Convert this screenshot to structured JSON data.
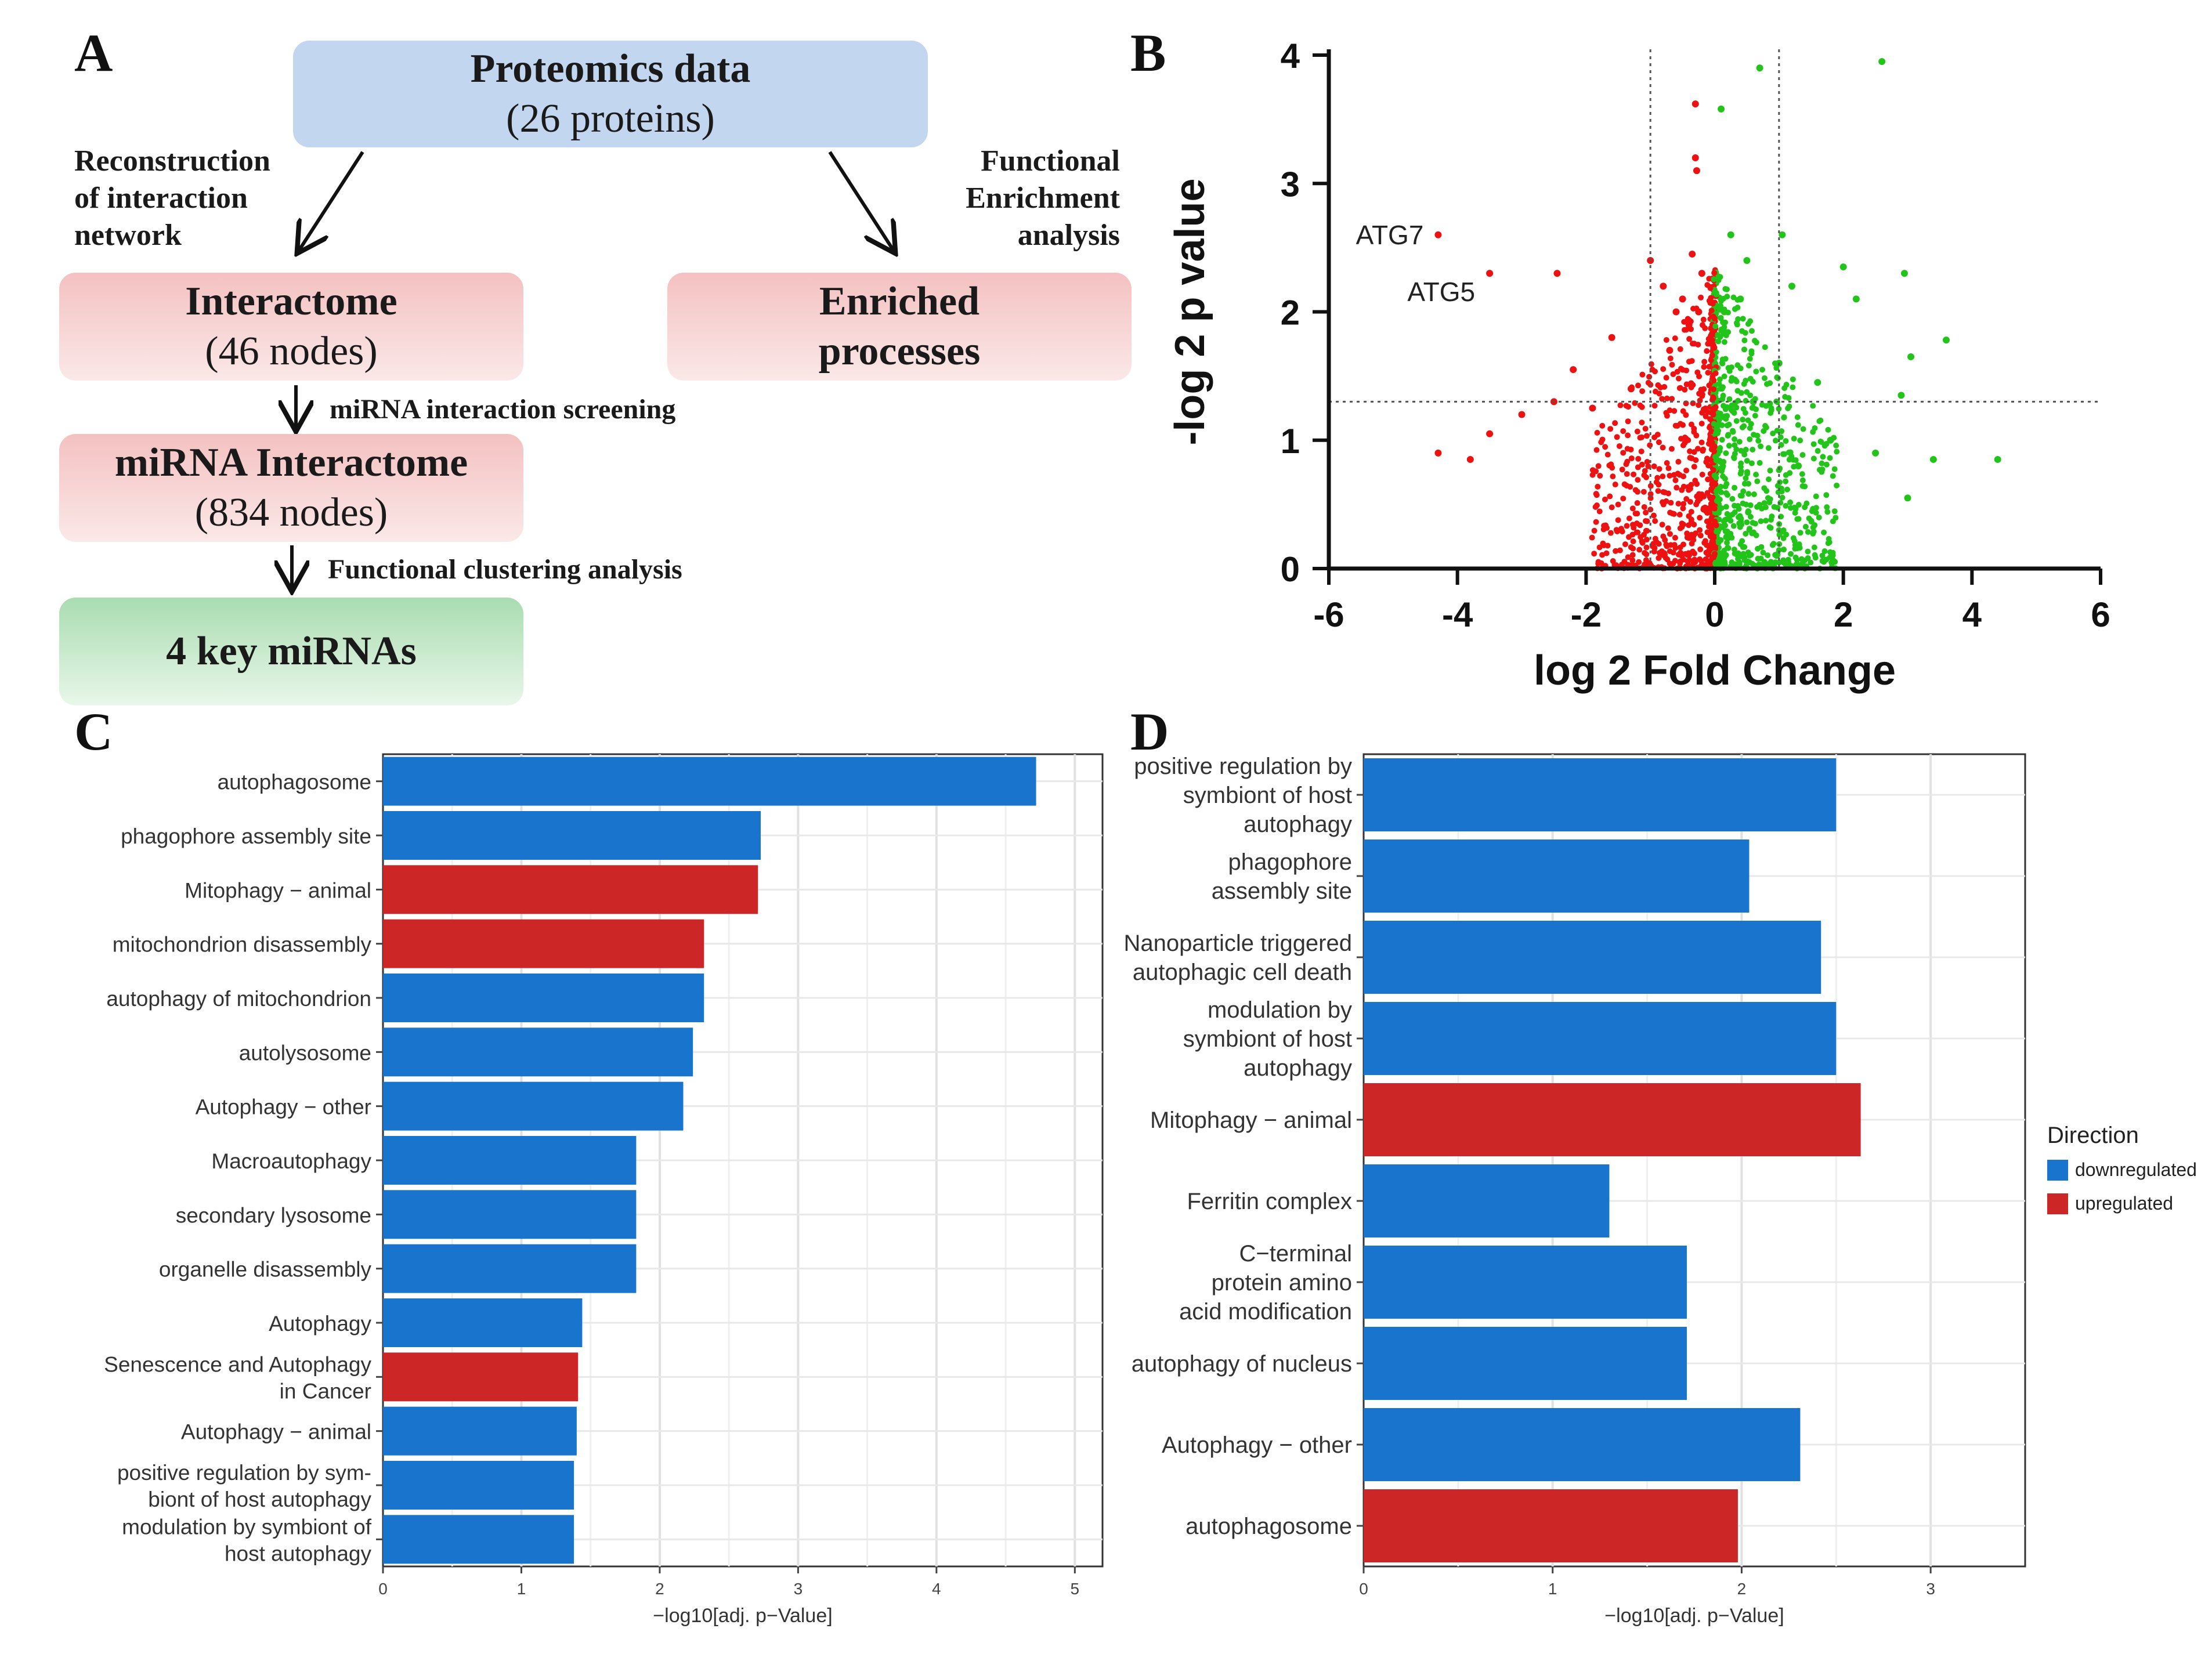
{
  "panels": {
    "a": "A",
    "b": "B",
    "c": "C",
    "d": "D"
  },
  "flow": {
    "proteomics": {
      "title": "Proteomics data",
      "subtitle": "(26 proteins)"
    },
    "left_arrow_label": "Reconstruction\nof interaction\nnetwork",
    "right_arrow_label": "Functional\nEnrichment\nanalysis",
    "interactome": {
      "title": "Interactome",
      "subtitle": "(46 nodes)"
    },
    "enriched": {
      "title": "Enriched",
      "subtitle": "processes"
    },
    "screening_label": "miRNA interaction screening",
    "mirna_interactome": {
      "title": "miRNA Interactome",
      "subtitle": "(834 nodes)"
    },
    "clustering_label": "Functional clustering analysis",
    "key_mirnas": {
      "title": "4 key miRNAs"
    }
  },
  "colors": {
    "down": "#1874cd",
    "up": "#cd2626",
    "green_point": "#22c41a",
    "red_point": "#ee1111"
  },
  "chart_data": [
    {
      "id": "volcano",
      "type": "scatter",
      "xlabel": "log 2 Fold Change",
      "ylabel": "-log 2 p value",
      "xlim": [
        -6,
        6
      ],
      "ylim": [
        0,
        4
      ],
      "xticks": [
        "-6",
        "-4",
        "-2",
        "0",
        "2",
        "4",
        "6"
      ],
      "yticks": [
        "0",
        "1",
        "2",
        "3",
        "4"
      ],
      "thresholds": {
        "x": [
          -1,
          1
        ],
        "y": 1.3
      },
      "annotations": [
        {
          "label": "ATG7",
          "x": -4.3,
          "y": 2.6
        },
        {
          "label": "ATG5",
          "x": -3.5,
          "y": 2.3
        }
      ],
      "series": [
        {
          "name": "negative fold change",
          "color": "red",
          "points": [
            [
              -4.3,
              2.6
            ],
            [
              -3.5,
              2.3
            ],
            [
              -2.45,
              2.3
            ],
            [
              -0.3,
              3.62
            ],
            [
              -0.3,
              3.2
            ],
            [
              -0.28,
              3.1
            ],
            [
              -0.25,
              2.0
            ],
            [
              -0.35,
              2.45
            ],
            [
              -1.0,
              2.4
            ],
            [
              -0.8,
              2.2
            ],
            [
              -0.5,
              2.1
            ],
            [
              -1.6,
              1.8
            ],
            [
              -2.2,
              1.55
            ],
            [
              -3.0,
              1.2
            ],
            [
              -3.5,
              1.05
            ],
            [
              -4.3,
              0.9
            ],
            [
              -3.8,
              0.85
            ],
            [
              -2.5,
              1.3
            ],
            [
              -1.9,
              1.25
            ],
            [
              -1.3,
              1.4
            ],
            [
              -0.7,
              1.7
            ],
            [
              -0.4,
              1.9
            ],
            [
              -0.2,
              2.3
            ],
            [
              -0.6,
              2.0
            ]
          ]
        },
        {
          "name": "positive fold change",
          "color": "green",
          "points": [
            [
              0.7,
              3.9
            ],
            [
              2.6,
              3.95
            ],
            [
              0.1,
              3.58
            ],
            [
              0.25,
              2.6
            ],
            [
              1.05,
              2.6
            ],
            [
              0.5,
              2.4
            ],
            [
              2.0,
              2.35
            ],
            [
              2.95,
              2.3
            ],
            [
              1.2,
              2.2
            ],
            [
              2.2,
              2.1
            ],
            [
              3.6,
              1.78
            ],
            [
              3.05,
              1.65
            ],
            [
              1.6,
              1.45
            ],
            [
              2.9,
              1.35
            ],
            [
              4.4,
              0.85
            ],
            [
              3.4,
              0.85
            ],
            [
              3.0,
              0.55
            ],
            [
              2.5,
              0.9
            ],
            [
              1.0,
              1.6
            ],
            [
              0.4,
              2.1
            ],
            [
              0.15,
              2.0
            ],
            [
              1.8,
              1.0
            ],
            [
              1.3,
              0.8
            ],
            [
              0.6,
              1.3
            ]
          ]
        }
      ]
    },
    {
      "id": "bars_c",
      "type": "bar",
      "orientation": "horizontal",
      "xlabel": "−log10[adj. p−Value]",
      "xlim": [
        0,
        5.2
      ],
      "xticks": [
        "0",
        "1",
        "2",
        "3",
        "4",
        "5"
      ],
      "categories": [
        {
          "label": "autophagosome",
          "value": 4.72,
          "direction": "downregulated"
        },
        {
          "label": "phagophore assembly site",
          "value": 2.73,
          "direction": "downregulated"
        },
        {
          "label": "Mitophagy − animal",
          "value": 2.71,
          "direction": "upregulated"
        },
        {
          "label": "mitochondrion disassembly",
          "value": 2.32,
          "direction": "upregulated"
        },
        {
          "label": "autophagy of mitochondrion",
          "value": 2.32,
          "direction": "downregulated"
        },
        {
          "label": "autolysosome",
          "value": 2.24,
          "direction": "downregulated"
        },
        {
          "label": "Autophagy − other",
          "value": 2.17,
          "direction": "downregulated"
        },
        {
          "label": "Macroautophagy",
          "value": 1.83,
          "direction": "downregulated"
        },
        {
          "label": "secondary lysosome",
          "value": 1.83,
          "direction": "downregulated"
        },
        {
          "label": "organelle disassembly",
          "value": 1.83,
          "direction": "downregulated"
        },
        {
          "label": "Autophagy",
          "value": 1.44,
          "direction": "downregulated"
        },
        {
          "label": "Senescence and Autophagy\nin Cancer",
          "value": 1.41,
          "direction": "upregulated"
        },
        {
          "label": "Autophagy − animal",
          "value": 1.4,
          "direction": "downregulated"
        },
        {
          "label": "positive regulation by sym-\nbiont of host autophagy",
          "value": 1.38,
          "direction": "downregulated"
        },
        {
          "label": "modulation by symbiont of\nhost autophagy",
          "value": 1.38,
          "direction": "downregulated"
        }
      ]
    },
    {
      "id": "bars_d",
      "type": "bar",
      "orientation": "horizontal",
      "xlabel": "−log10[adj. p−Value]",
      "xlim": [
        0,
        3.5
      ],
      "xticks": [
        "0",
        "1",
        "2",
        "3"
      ],
      "legend": {
        "title": "Direction",
        "entries": [
          "downregulated",
          "upregulated"
        ],
        "position": "right"
      },
      "categories": [
        {
          "label": "positive regulation by\nsymbiont of host\nautophagy",
          "value": 2.5,
          "direction": "downregulated"
        },
        {
          "label": "phagophore\nassembly site",
          "value": 2.04,
          "direction": "downregulated"
        },
        {
          "label": "Nanoparticle triggered\nautophagic cell death",
          "value": 2.42,
          "direction": "downregulated"
        },
        {
          "label": "modulation by\nsymbiont of host\nautophagy",
          "value": 2.5,
          "direction": "downregulated"
        },
        {
          "label": "Mitophagy − animal",
          "value": 2.63,
          "direction": "upregulated"
        },
        {
          "label": "Ferritin complex",
          "value": 1.3,
          "direction": "downregulated"
        },
        {
          "label": "C−terminal\nprotein amino\nacid modification",
          "value": 1.71,
          "direction": "downregulated"
        },
        {
          "label": "autophagy of nucleus",
          "value": 1.71,
          "direction": "downregulated"
        },
        {
          "label": "Autophagy − other",
          "value": 2.31,
          "direction": "downregulated"
        },
        {
          "label": "autophagosome",
          "value": 1.98,
          "direction": "upregulated"
        }
      ]
    }
  ]
}
